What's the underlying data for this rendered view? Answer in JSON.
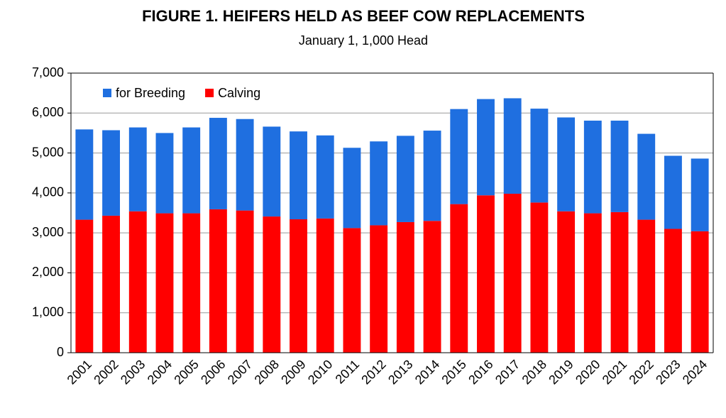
{
  "chart_data": {
    "type": "stacked-bar",
    "title": "FIGURE 1. HEIFERS HELD AS BEEF COW REPLACEMENTS",
    "subtitle": "January 1, 1,000 Head",
    "categories": [
      "2001",
      "2002",
      "2003",
      "2004",
      "2005",
      "2006",
      "2007",
      "2008",
      "2009",
      "2010",
      "2011",
      "2012",
      "2013",
      "2014",
      "2015",
      "2016",
      "2017",
      "2018",
      "2019",
      "2020",
      "2021",
      "2022",
      "2023",
      "2024"
    ],
    "series": [
      {
        "name": "for Breeding",
        "color": "#1f6fe0",
        "values": [
          2260,
          2140,
          2100,
          2010,
          2150,
          2290,
          2290,
          2250,
          2200,
          2080,
          2010,
          2100,
          2160,
          2260,
          2380,
          2410,
          2390,
          2350,
          2350,
          2320,
          2290,
          2150,
          1830,
          1820
        ]
      },
      {
        "name": "Calving",
        "color": "#ff0000",
        "values": [
          3330,
          3430,
          3540,
          3490,
          3490,
          3590,
          3560,
          3410,
          3340,
          3360,
          3120,
          3190,
          3270,
          3300,
          3720,
          3940,
          3980,
          3760,
          3540,
          3490,
          3520,
          3330,
          3100,
          3040
        ]
      }
    ],
    "ylim": [
      0,
      7000
    ],
    "yticks": [
      0,
      {
        "value": 1000,
        "label": "1,000"
      },
      {
        "value": 2000,
        "label": "2,000"
      },
      {
        "value": 3000,
        "label": "3,000"
      },
      {
        "value": 4000,
        "label": "4,000"
      },
      {
        "value": 5000,
        "label": "5,000"
      },
      {
        "value": 6000,
        "label": "6,000"
      },
      {
        "value": 7000,
        "label": "7,000"
      }
    ],
    "grid": true,
    "legend": "top-left"
  }
}
